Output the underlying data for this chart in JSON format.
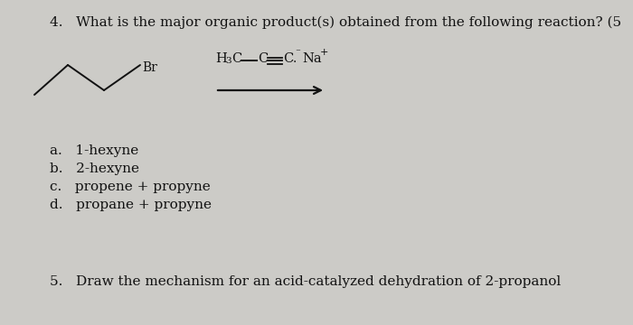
{
  "background_color": "#cccbc7",
  "title_text": "4.   What is the major organic product(s) obtained from the following reaction? (5",
  "title_color": "#111111",
  "question5_text": "5.   Draw the mechanism for an acid-catalyzed dehydration of 2-propanol",
  "answers": [
    "a.   1-hexyne",
    "b.   2-hexyne",
    "c.   propene + propyne",
    "d.   propane + propyne"
  ],
  "font_size": 11.0
}
